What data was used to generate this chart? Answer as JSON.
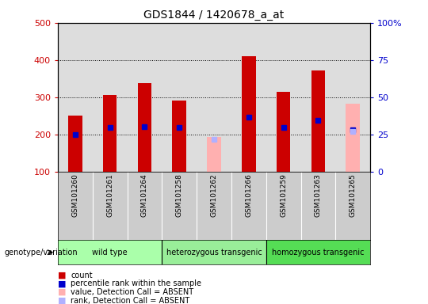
{
  "title": "GDS1844 / 1420678_a_at",
  "samples": [
    "GSM101260",
    "GSM101261",
    "GSM101264",
    "GSM101258",
    "GSM101262",
    "GSM101266",
    "GSM101259",
    "GSM101263",
    "GSM101265"
  ],
  "count_values": [
    250,
    307,
    337,
    292,
    null,
    410,
    315,
    372,
    null
  ],
  "rank_values": [
    200,
    218,
    222,
    218,
    null,
    247,
    220,
    238,
    213
  ],
  "absent_value_values": [
    null,
    null,
    null,
    null,
    193,
    null,
    null,
    null,
    282
  ],
  "absent_rank_values": [
    null,
    null,
    null,
    null,
    188,
    null,
    null,
    null,
    208
  ],
  "groups": [
    {
      "label": "wild type",
      "start": 0,
      "end": 3,
      "color": "#aaffaa"
    },
    {
      "label": "heterozygous transgenic",
      "start": 3,
      "end": 6,
      "color": "#99ee99"
    },
    {
      "label": "homozygous transgenic",
      "start": 6,
      "end": 9,
      "color": "#55dd55"
    }
  ],
  "ylim_left": [
    100,
    500
  ],
  "ylim_right": [
    0,
    100
  ],
  "yticks_left": [
    100,
    200,
    300,
    400,
    500
  ],
  "yticks_right": [
    0,
    25,
    50,
    75,
    100
  ],
  "yticklabels_right": [
    "0",
    "25",
    "50",
    "75",
    "100%"
  ],
  "bar_width": 0.4,
  "count_color": "#cc0000",
  "rank_color": "#0000cc",
  "absent_value_color": "#ffb0b0",
  "absent_rank_color": "#b0b0ff",
  "plot_bg_color": "#dddddd",
  "label_area_color": "#cccccc",
  "left_tick_color": "#cc0000",
  "right_tick_color": "#0000cc",
  "grid_yticks": [
    200,
    300,
    400
  ],
  "legend_items": [
    {
      "color": "#cc0000",
      "label": "count"
    },
    {
      "color": "#0000cc",
      "label": "percentile rank within the sample"
    },
    {
      "color": "#ffb0b0",
      "label": "value, Detection Call = ABSENT"
    },
    {
      "color": "#b0b0ff",
      "label": "rank, Detection Call = ABSENT"
    }
  ]
}
